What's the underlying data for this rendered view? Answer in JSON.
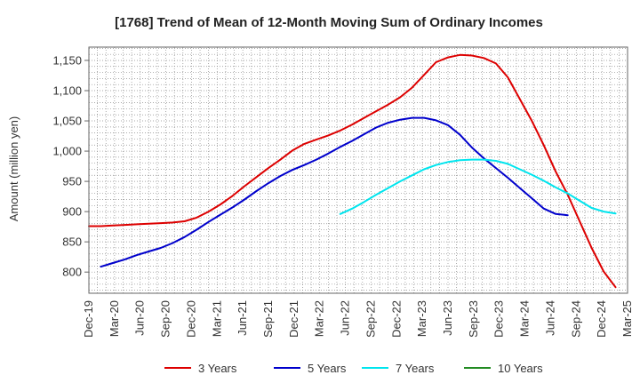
{
  "chart_data": {
    "type": "line",
    "title": "[1768]  Trend of Mean of 12-Month Moving Sum of Ordinary Incomes",
    "xlabel": "",
    "ylabel": "Amount (million yen)",
    "ylim": [
      765,
      1172
    ],
    "yticks": [
      800,
      850,
      900,
      950,
      1000,
      1050,
      1100,
      1150
    ],
    "ytick_labels": [
      "800",
      "850",
      "900",
      "950",
      "1,000",
      "1,050",
      "1,100",
      "1,150"
    ],
    "xticks": [
      "Dec-19",
      "Mar-20",
      "Jun-20",
      "Sep-20",
      "Dec-20",
      "Mar-21",
      "Jun-21",
      "Sep-21",
      "Dec-21",
      "Mar-22",
      "Jun-22",
      "Sep-22",
      "Dec-22",
      "Mar-23",
      "Jun-23",
      "Sep-23",
      "Dec-23",
      "Mar-24",
      "Jun-24",
      "Sep-24",
      "Dec-24",
      "Mar-25"
    ],
    "grid": true,
    "legend_position": "bottom",
    "series": [
      {
        "name": "3 Years",
        "color": "#dd0000",
        "points": [
          [
            0,
            876
          ],
          [
            1,
            876
          ],
          [
            2,
            877
          ],
          [
            3,
            878
          ],
          [
            4,
            879
          ],
          [
            5,
            880
          ],
          [
            6,
            881
          ],
          [
            7,
            882
          ],
          [
            8,
            884
          ],
          [
            9,
            890
          ],
          [
            10,
            900
          ],
          [
            11,
            912
          ],
          [
            12,
            926
          ],
          [
            13,
            942
          ],
          [
            14,
            957
          ],
          [
            15,
            972
          ],
          [
            16,
            986
          ],
          [
            17,
            1001
          ],
          [
            18,
            1012
          ],
          [
            19,
            1019
          ],
          [
            20,
            1026
          ],
          [
            21,
            1034
          ],
          [
            22,
            1044
          ],
          [
            23,
            1055
          ],
          [
            24,
            1066
          ],
          [
            25,
            1077
          ],
          [
            26,
            1089
          ],
          [
            27,
            1105
          ],
          [
            28,
            1126
          ],
          [
            29,
            1147
          ],
          [
            30,
            1155
          ],
          [
            31,
            1159
          ],
          [
            32,
            1158
          ],
          [
            33,
            1154
          ],
          [
            34,
            1145
          ],
          [
            35,
            1122
          ],
          [
            36,
            1086
          ],
          [
            37,
            1050
          ],
          [
            38,
            1010
          ],
          [
            39,
            966
          ],
          [
            40,
            928
          ],
          [
            41,
            884
          ],
          [
            42,
            840
          ],
          [
            43,
            801
          ],
          [
            44,
            775
          ]
        ]
      },
      {
        "name": "5 Years",
        "color": "#0000cc",
        "points": [
          [
            1,
            809
          ],
          [
            2,
            815
          ],
          [
            3,
            821
          ],
          [
            4,
            828
          ],
          [
            5,
            834
          ],
          [
            6,
            840
          ],
          [
            7,
            848
          ],
          [
            8,
            858
          ],
          [
            9,
            870
          ],
          [
            10,
            883
          ],
          [
            11,
            895
          ],
          [
            12,
            907
          ],
          [
            13,
            920
          ],
          [
            14,
            934
          ],
          [
            15,
            947
          ],
          [
            16,
            959
          ],
          [
            17,
            969
          ],
          [
            18,
            977
          ],
          [
            19,
            986
          ],
          [
            20,
            996
          ],
          [
            21,
            1007
          ],
          [
            22,
            1017
          ],
          [
            23,
            1028
          ],
          [
            24,
            1039
          ],
          [
            25,
            1047
          ],
          [
            26,
            1052
          ],
          [
            27,
            1055
          ],
          [
            28,
            1055
          ],
          [
            29,
            1051
          ],
          [
            30,
            1043
          ],
          [
            31,
            1027
          ],
          [
            32,
            1006
          ],
          [
            33,
            988
          ],
          [
            34,
            972
          ],
          [
            35,
            956
          ],
          [
            36,
            939
          ],
          [
            37,
            922
          ],
          [
            38,
            905
          ],
          [
            39,
            896
          ],
          [
            40,
            894
          ]
        ]
      },
      {
        "name": "7 Years",
        "color": "#00e5ee",
        "points": [
          [
            21,
            896
          ],
          [
            22,
            905
          ],
          [
            23,
            916
          ],
          [
            24,
            928
          ],
          [
            25,
            939
          ],
          [
            26,
            950
          ],
          [
            27,
            960
          ],
          [
            28,
            970
          ],
          [
            29,
            977
          ],
          [
            30,
            982
          ],
          [
            31,
            985
          ],
          [
            32,
            986
          ],
          [
            33,
            986
          ],
          [
            34,
            984
          ],
          [
            35,
            979
          ],
          [
            36,
            970
          ],
          [
            37,
            961
          ],
          [
            38,
            951
          ],
          [
            39,
            940
          ],
          [
            40,
            930
          ],
          [
            41,
            918
          ],
          [
            42,
            906
          ],
          [
            43,
            900
          ],
          [
            44,
            897
          ]
        ]
      },
      {
        "name": "10 Years",
        "color": "#228b22",
        "points": []
      }
    ]
  }
}
